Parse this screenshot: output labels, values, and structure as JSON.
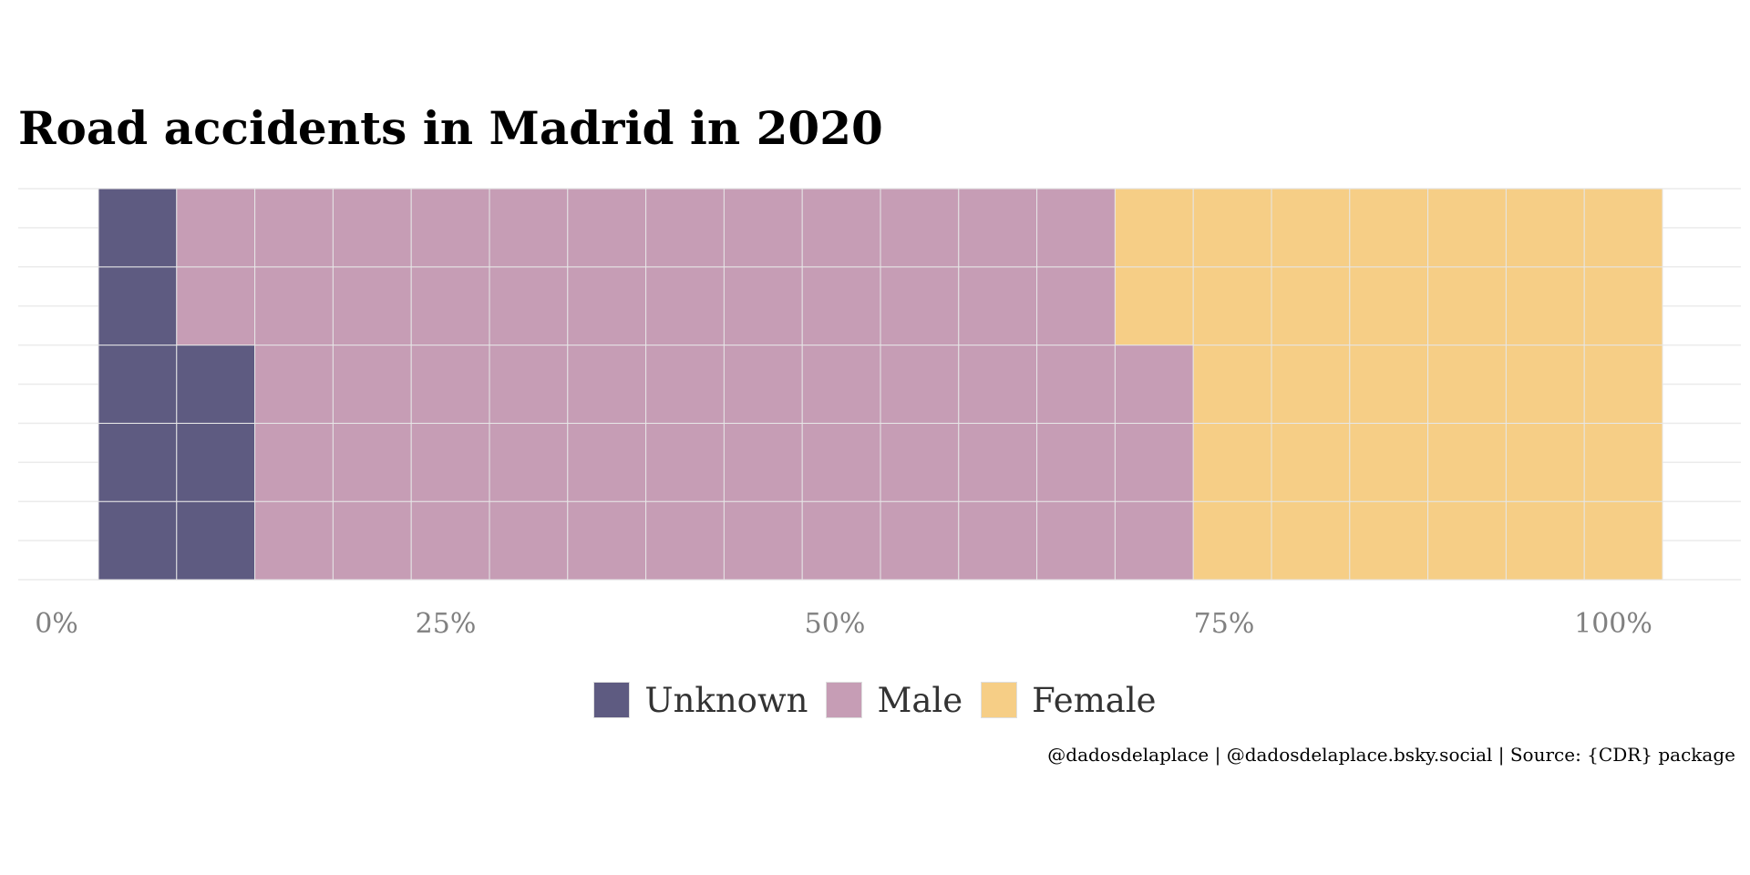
{
  "chart_data": {
    "type": "waffle",
    "title": "Road accidents in Madrid in 2020",
    "grid": {
      "rows": 5,
      "columns": 20,
      "cells_total": 100,
      "fill_order": "column-major, bottom to top"
    },
    "series": [
      {
        "name": "Unknown",
        "cells": 8,
        "color": "#5e5b81"
      },
      {
        "name": "Male",
        "cells": 60,
        "color": "#c69db5"
      },
      {
        "name": "Female",
        "cells": 32,
        "color": "#f6ce86"
      }
    ],
    "x_ticks": [
      "0%",
      "25%",
      "50%",
      "75%",
      "100%"
    ],
    "x_tick_values": [
      0,
      25,
      50,
      75,
      100
    ],
    "xlim": [
      0,
      100
    ],
    "grid_lines": true,
    "legend_position": "bottom"
  },
  "caption": "@dadosdelaplace | @dadosdelaplace.bsky.social | Source: {CDR} package"
}
